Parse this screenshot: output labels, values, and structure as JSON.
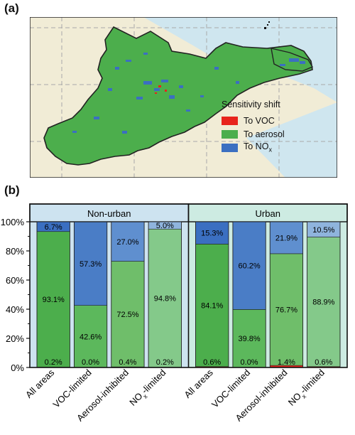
{
  "panel_a": {
    "label": "(a)",
    "legend": {
      "title": "Sensitivity shift",
      "items": [
        {
          "label": "To VOC",
          "color": "#e8231c"
        },
        {
          "label": "To aerosol",
          "color": "#4cae4c"
        },
        {
          "label": "To NO",
          "sub": "x",
          "color": "#3b6fc1"
        }
      ]
    },
    "colors": {
      "land": "#f1ecd6",
      "sea": "#cfe6ef",
      "region": "#4cae4c"
    }
  },
  "panel_b": {
    "label": "(b)"
  },
  "chart_data": {
    "type": "bar",
    "stacked": true,
    "ylim": [
      0,
      100
    ],
    "yticks": [
      "0%",
      "20%",
      "40%",
      "60%",
      "80%",
      "100%"
    ],
    "categories": [
      "All areas",
      "VOC-limited",
      "Aerosol-inhibited",
      "NOx-limited"
    ],
    "groups": [
      {
        "name": "Non-urban",
        "header_color": "#cde3f0",
        "background": "#cde3f0",
        "bars": [
          {
            "category": "All areas",
            "voc": 0.2,
            "aerosol": 93.1,
            "nox": 6.7,
            "labels": [
              "0.2%",
              "93.1%",
              "6.7%"
            ],
            "aerosol_color": "#4cae4c",
            "nox_color": "#3b6fc1"
          },
          {
            "category": "VOC-limited",
            "voc": 0.0,
            "aerosol": 42.6,
            "nox": 57.3,
            "labels": [
              "0.0%",
              "42.6%",
              "57.3%"
            ],
            "aerosol_color": "#5cb85c",
            "nox_color": "#4a7dc6"
          },
          {
            "category": "Aerosol-inhibited",
            "voc": 0.4,
            "aerosol": 72.5,
            "nox": 27.0,
            "labels": [
              "0.4%",
              "72.5%",
              "27.0%"
            ],
            "aerosol_color": "#6fbe6a",
            "nox_color": "#5f8fcf"
          },
          {
            "category": "NOx-limited",
            "voc": 0.2,
            "aerosol": 94.8,
            "nox": 5.0,
            "labels": [
              "0.2%",
              "94.8%",
              "5.0%"
            ],
            "aerosol_color": "#84c98a",
            "nox_color": "#8fb4dd"
          }
        ]
      },
      {
        "name": "Urban",
        "header_color": "#cdebe2",
        "background": "#cdebe2",
        "bars": [
          {
            "category": "All areas",
            "voc": 0.6,
            "aerosol": 84.1,
            "nox": 15.3,
            "labels": [
              "0.6%",
              "84.1%",
              "15.3%"
            ],
            "aerosol_color": "#4cae4c",
            "nox_color": "#3b6fc1"
          },
          {
            "category": "VOC-limited",
            "voc": 0.0,
            "aerosol": 39.8,
            "nox": 60.2,
            "labels": [
              "0.0%",
              "39.8%",
              "60.2%"
            ],
            "aerosol_color": "#5cb85c",
            "nox_color": "#4a7dc6"
          },
          {
            "category": "Aerosol-inhibited",
            "voc": 1.4,
            "aerosol": 76.7,
            "nox": 21.9,
            "labels": [
              "1.4%",
              "76.7%",
              "21.9%"
            ],
            "aerosol_color": "#6fbe6a",
            "nox_color": "#5f8fcf"
          },
          {
            "category": "NOx-limited",
            "voc": 0.6,
            "aerosol": 88.9,
            "nox": 10.5,
            "labels": [
              "0.6%",
              "88.9%",
              "10.5%"
            ],
            "aerosol_color": "#84c98a",
            "nox_color": "#8fb4dd"
          }
        ]
      }
    ],
    "category_tick_labels": [
      {
        "text": "All areas"
      },
      {
        "text": "VOC-limited"
      },
      {
        "text": "Aerosol-inhibited"
      },
      {
        "text": "NO",
        "sub": "x",
        "suffix": "-limited"
      }
    ],
    "voc_color": "#e8231c"
  }
}
